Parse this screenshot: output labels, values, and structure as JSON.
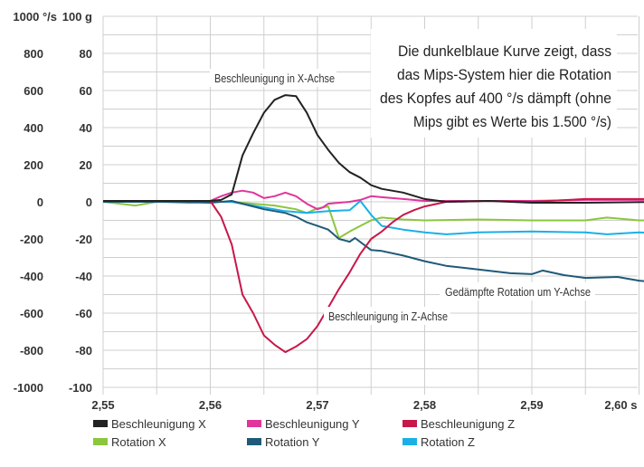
{
  "chart_data": {
    "type": "line",
    "title": "",
    "xlabel": "",
    "x_unit": "s",
    "xlim": [
      2.55,
      2.602
    ],
    "x_ticks": [
      "2,55",
      "2,56",
      "2,57",
      "2,58",
      "2,59",
      "2,60 s"
    ],
    "x_tick_values": [
      2.55,
      2.56,
      2.57,
      2.58,
      2.59,
      2.6
    ],
    "y_left": {
      "unit": "°/s",
      "range": [
        -1000,
        1000
      ],
      "ticks": [
        "1000 °/s",
        "800",
        "600",
        "400",
        "200",
        "0",
        "-200",
        "-400",
        "-600",
        "-800",
        "-1000"
      ]
    },
    "y_right": {
      "unit": "g",
      "range": [
        -100,
        100
      ],
      "ticks": [
        "100 g",
        "80",
        "60",
        "40",
        "20",
        "0",
        "-20",
        "-40",
        "-60",
        "-80",
        "-100"
      ]
    },
    "grid": true,
    "legend_placement": "bottom",
    "series": [
      {
        "name": "Beschleunigung X",
        "axis": "g",
        "color": "#222222",
        "points": [
          [
            2.55,
            0.5
          ],
          [
            2.556,
            0.5
          ],
          [
            2.56,
            0.5
          ],
          [
            2.561,
            1
          ],
          [
            2.562,
            4
          ],
          [
            2.563,
            25
          ],
          [
            2.564,
            37
          ],
          [
            2.565,
            48
          ],
          [
            2.566,
            55
          ],
          [
            2.567,
            57.5
          ],
          [
            2.568,
            57
          ],
          [
            2.569,
            48
          ],
          [
            2.57,
            36
          ],
          [
            2.571,
            28
          ],
          [
            2.572,
            21
          ],
          [
            2.573,
            16
          ],
          [
            2.574,
            13
          ],
          [
            2.575,
            9
          ],
          [
            2.576,
            7
          ],
          [
            2.578,
            5
          ],
          [
            2.58,
            1.5
          ],
          [
            2.582,
            0
          ],
          [
            2.586,
            0.5
          ],
          [
            2.59,
            -0.5
          ],
          [
            2.595,
            -0.5
          ],
          [
            2.602,
            0
          ]
        ]
      },
      {
        "name": "Beschleunigung Y",
        "axis": "g",
        "color": "#e0359a",
        "points": [
          [
            2.55,
            0.5
          ],
          [
            2.556,
            0.5
          ],
          [
            2.56,
            0.5
          ],
          [
            2.561,
            3
          ],
          [
            2.562,
            5
          ],
          [
            2.563,
            6
          ],
          [
            2.564,
            5
          ],
          [
            2.565,
            2
          ],
          [
            2.566,
            3
          ],
          [
            2.567,
            5
          ],
          [
            2.568,
            3
          ],
          [
            2.569,
            -1
          ],
          [
            2.57,
            -4
          ],
          [
            2.5705,
            -3
          ],
          [
            2.571,
            -1
          ],
          [
            2.572,
            -0.5
          ],
          [
            2.573,
            0
          ],
          [
            2.574,
            1
          ],
          [
            2.575,
            3
          ],
          [
            2.576,
            2.5
          ],
          [
            2.578,
            1.5
          ],
          [
            2.58,
            0.5
          ],
          [
            2.585,
            0.5
          ],
          [
            2.59,
            0.5
          ],
          [
            2.595,
            1
          ],
          [
            2.602,
            1
          ]
        ]
      },
      {
        "name": "Beschleunigung Z",
        "axis": "g",
        "color": "#c8174a",
        "points": [
          [
            2.55,
            0.5
          ],
          [
            2.556,
            0.5
          ],
          [
            2.56,
            0.5
          ],
          [
            2.561,
            -8
          ],
          [
            2.562,
            -23
          ],
          [
            2.563,
            -50
          ],
          [
            2.564,
            -60
          ],
          [
            2.565,
            -72
          ],
          [
            2.566,
            -77
          ],
          [
            2.567,
            -81
          ],
          [
            2.568,
            -78
          ],
          [
            2.569,
            -74
          ],
          [
            2.57,
            -67
          ],
          [
            2.571,
            -57
          ],
          [
            2.572,
            -47
          ],
          [
            2.573,
            -38
          ],
          [
            2.574,
            -28
          ],
          [
            2.575,
            -20
          ],
          [
            2.576,
            -16
          ],
          [
            2.577,
            -11
          ],
          [
            2.578,
            -7
          ],
          [
            2.579,
            -4.5
          ],
          [
            2.58,
            -2.5
          ],
          [
            2.582,
            0
          ],
          [
            2.586,
            0.5
          ],
          [
            2.59,
            0
          ],
          [
            2.595,
            1.5
          ],
          [
            2.602,
            1.5
          ]
        ]
      },
      {
        "name": "Rotation X",
        "axis": "°/s",
        "color": "#8cc63f",
        "points": [
          [
            2.55,
            0
          ],
          [
            2.553,
            -20
          ],
          [
            2.555,
            0
          ],
          [
            2.558,
            -5
          ],
          [
            2.56,
            0
          ],
          [
            2.562,
            0
          ],
          [
            2.564,
            -10
          ],
          [
            2.566,
            -20
          ],
          [
            2.568,
            -40
          ],
          [
            2.569,
            -60
          ],
          [
            2.57,
            -35
          ],
          [
            2.571,
            -25
          ],
          [
            2.572,
            -195
          ],
          [
            2.573,
            -160
          ],
          [
            2.574,
            -130
          ],
          [
            2.575,
            -100
          ],
          [
            2.576,
            -85
          ],
          [
            2.578,
            -95
          ],
          [
            2.58,
            -100
          ],
          [
            2.585,
            -95
          ],
          [
            2.59,
            -100
          ],
          [
            2.595,
            -100
          ],
          [
            2.597,
            -85
          ],
          [
            2.6,
            -100
          ],
          [
            2.602,
            -100
          ]
        ]
      },
      {
        "name": "Rotation Y",
        "axis": "°/s",
        "color": "#1f5a78",
        "points": [
          [
            2.55,
            0
          ],
          [
            2.556,
            0
          ],
          [
            2.56,
            -5
          ],
          [
            2.562,
            5
          ],
          [
            2.563,
            -10
          ],
          [
            2.565,
            -40
          ],
          [
            2.567,
            -60
          ],
          [
            2.568,
            -80
          ],
          [
            2.569,
            -110
          ],
          [
            2.57,
            -130
          ],
          [
            2.571,
            -150
          ],
          [
            2.572,
            -200
          ],
          [
            2.573,
            -215
          ],
          [
            2.5735,
            -195
          ],
          [
            2.575,
            -260
          ],
          [
            2.576,
            -265
          ],
          [
            2.578,
            -290
          ],
          [
            2.58,
            -320
          ],
          [
            2.582,
            -345
          ],
          [
            2.585,
            -365
          ],
          [
            2.588,
            -385
          ],
          [
            2.59,
            -390
          ],
          [
            2.591,
            -370
          ],
          [
            2.593,
            -395
          ],
          [
            2.595,
            -410
          ],
          [
            2.598,
            -405
          ],
          [
            2.6,
            -425
          ],
          [
            2.602,
            -435
          ]
        ]
      },
      {
        "name": "Rotation Z",
        "axis": "°/s",
        "color": "#1ab0e6",
        "points": [
          [
            2.55,
            0
          ],
          [
            2.556,
            5
          ],
          [
            2.56,
            0
          ],
          [
            2.562,
            0
          ],
          [
            2.563,
            -10
          ],
          [
            2.565,
            -30
          ],
          [
            2.567,
            -50
          ],
          [
            2.569,
            -60
          ],
          [
            2.571,
            -50
          ],
          [
            2.573,
            -45
          ],
          [
            2.574,
            5
          ],
          [
            2.575,
            -70
          ],
          [
            2.576,
            -130
          ],
          [
            2.578,
            -150
          ],
          [
            2.58,
            -165
          ],
          [
            2.582,
            -175
          ],
          [
            2.585,
            -165
          ],
          [
            2.59,
            -160
          ],
          [
            2.595,
            -165
          ],
          [
            2.597,
            -175
          ],
          [
            2.6,
            -165
          ],
          [
            2.602,
            -170
          ]
        ]
      }
    ],
    "annotations": [
      {
        "text": "Beschleunigung in X-Achse"
      },
      {
        "text": "Gedämpfte Rotation um Y-Achse"
      },
      {
        "text": "Beschleunigung in Z-Achse"
      }
    ],
    "callout": [
      "Die dunkelblaue Kurve zeigt, dass",
      "das Mips-System hier die Rotation",
      "des Kopfes auf 400 °/s dämpft (ohne",
      "Mips gibt es Werte bis 1.500 °/s)"
    ]
  }
}
